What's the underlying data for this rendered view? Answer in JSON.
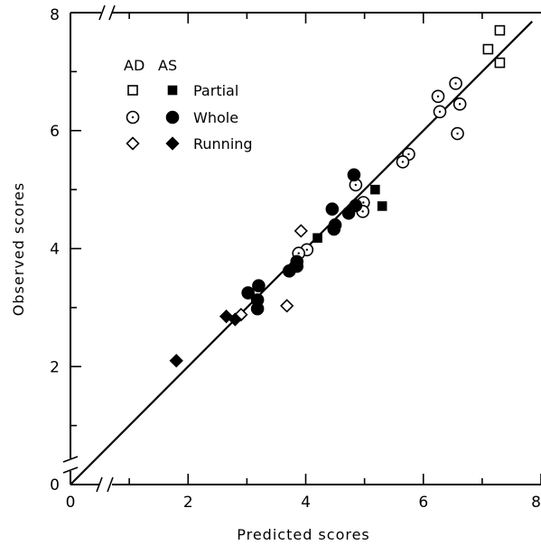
{
  "chart_data": {
    "type": "scatter",
    "title": "",
    "xlabel": "Predicted scores",
    "ylabel": "Observed scores",
    "xlim": [
      0,
      8
    ],
    "ylim": [
      0,
      8
    ],
    "x_ticks": [
      "0",
      "2",
      "4",
      "6",
      "8"
    ],
    "y_ticks": [
      "0",
      "2",
      "4",
      "6",
      "8"
    ],
    "grid": false,
    "axis_breaks": true,
    "legend": {
      "placement": "top-left",
      "header": [
        "AD",
        "AS"
      ],
      "rows": [
        {
          "label": "Partial",
          "marker": "square"
        },
        {
          "label": "Whole",
          "marker": "circle"
        },
        {
          "label": "Running",
          "marker": "diamond"
        }
      ]
    },
    "fit_line": {
      "style": "solid",
      "points": [
        [
          0,
          0
        ],
        [
          7.85,
          7.85
        ]
      ]
    },
    "series": [
      {
        "name": "Partial",
        "group": "AD",
        "marker": "square",
        "filled": false,
        "points": [
          [
            7.3,
            7.7
          ],
          [
            7.1,
            7.38
          ],
          [
            7.3,
            7.15
          ]
        ]
      },
      {
        "name": "Partial",
        "group": "AS",
        "marker": "square",
        "filled": true,
        "points": [
          [
            5.18,
            5.0
          ],
          [
            5.3,
            4.72
          ],
          [
            4.2,
            4.18
          ]
        ]
      },
      {
        "name": "Whole",
        "group": "AD",
        "marker": "circle",
        "filled": false,
        "points": [
          [
            6.55,
            6.8
          ],
          [
            6.25,
            6.58
          ],
          [
            6.28,
            6.32
          ],
          [
            6.62,
            6.45
          ],
          [
            6.58,
            5.95
          ],
          [
            5.75,
            5.6
          ],
          [
            5.65,
            5.47
          ],
          [
            4.85,
            5.08
          ],
          [
            4.98,
            4.78
          ],
          [
            4.97,
            4.63
          ],
          [
            4.02,
            3.98
          ],
          [
            3.88,
            3.92
          ]
        ]
      },
      {
        "name": "Whole",
        "group": "AS",
        "marker": "circle",
        "filled": true,
        "points": [
          [
            4.82,
            5.25
          ],
          [
            4.45,
            4.67
          ],
          [
            4.85,
            4.73
          ],
          [
            4.73,
            4.6
          ],
          [
            4.5,
            4.4
          ],
          [
            4.48,
            4.33
          ],
          [
            3.85,
            3.78
          ],
          [
            3.85,
            3.7
          ],
          [
            3.72,
            3.62
          ],
          [
            3.2,
            3.37
          ],
          [
            3.02,
            3.25
          ],
          [
            3.18,
            3.13
          ],
          [
            3.18,
            2.98
          ]
        ]
      },
      {
        "name": "Running",
        "group": "AD",
        "marker": "diamond",
        "filled": false,
        "points": [
          [
            3.92,
            4.3
          ],
          [
            3.68,
            3.03
          ],
          [
            2.9,
            2.88
          ]
        ]
      },
      {
        "name": "Running",
        "group": "AS",
        "marker": "diamond",
        "filled": true,
        "points": [
          [
            2.65,
            2.85
          ],
          [
            2.8,
            2.8
          ],
          [
            1.8,
            2.1
          ]
        ]
      }
    ]
  }
}
